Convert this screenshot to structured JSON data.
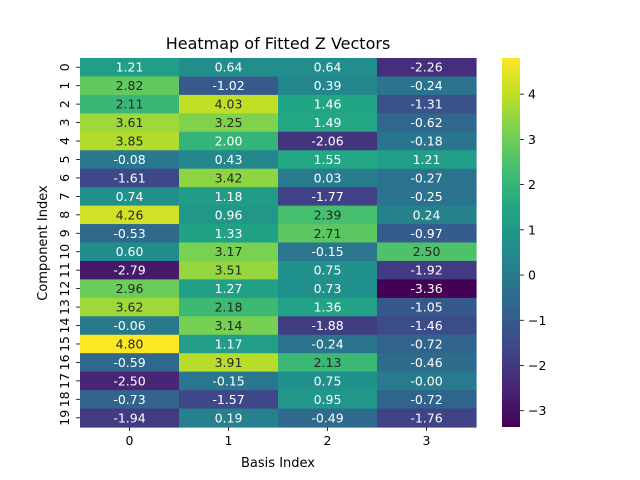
{
  "chart_data": {
    "type": "heatmap",
    "title": "Heatmap of Fitted Z Vectors",
    "xlabel": "Basis Index",
    "ylabel": "Component Index",
    "x_categories": [
      "0",
      "1",
      "2",
      "3"
    ],
    "y_categories": [
      "0",
      "1",
      "2",
      "3",
      "4",
      "5",
      "6",
      "7",
      "8",
      "9",
      "10",
      "11",
      "12",
      "13",
      "14",
      "15",
      "16",
      "17",
      "18",
      "19"
    ],
    "values": [
      [
        1.21,
        0.64,
        0.64,
        -2.26
      ],
      [
        2.82,
        -1.02,
        0.39,
        -0.24
      ],
      [
        2.11,
        4.03,
        1.46,
        -1.31
      ],
      [
        3.61,
        3.25,
        1.49,
        -0.62
      ],
      [
        3.85,
        2.0,
        -2.06,
        -0.18
      ],
      [
        -0.08,
        0.43,
        1.55,
        1.21
      ],
      [
        -1.61,
        3.42,
        0.03,
        -0.27
      ],
      [
        0.74,
        1.18,
        -1.77,
        -0.25
      ],
      [
        4.26,
        0.96,
        2.39,
        0.24
      ],
      [
        -0.53,
        1.33,
        2.71,
        -0.97
      ],
      [
        0.6,
        3.17,
        -0.15,
        2.5
      ],
      [
        -2.79,
        3.51,
        0.75,
        -1.92
      ],
      [
        2.96,
        1.27,
        0.73,
        -3.36
      ],
      [
        3.62,
        2.18,
        1.36,
        -1.05
      ],
      [
        -0.06,
        3.14,
        -1.88,
        -1.46
      ],
      [
        4.8,
        1.17,
        -0.24,
        -0.72
      ],
      [
        -0.59,
        3.91,
        2.13,
        -0.46
      ],
      [
        -2.5,
        -0.15,
        0.75,
        -0.0
      ],
      [
        -0.73,
        -1.57,
        0.95,
        -0.72
      ],
      [
        -1.94,
        0.19,
        -0.49,
        -1.76
      ]
    ],
    "labels": [
      [
        "1.21",
        "0.64",
        "0.64",
        "-2.26"
      ],
      [
        "2.82",
        "-1.02",
        "0.39",
        "-0.24"
      ],
      [
        "2.11",
        "4.03",
        "1.46",
        "-1.31"
      ],
      [
        "3.61",
        "3.25",
        "1.49",
        "-0.62"
      ],
      [
        "3.85",
        "2.00",
        "-2.06",
        "-0.18"
      ],
      [
        "-0.08",
        "0.43",
        "1.55",
        "1.21"
      ],
      [
        "-1.61",
        "3.42",
        "0.03",
        "-0.27"
      ],
      [
        "0.74",
        "1.18",
        "-1.77",
        "-0.25"
      ],
      [
        "4.26",
        "0.96",
        "2.39",
        "0.24"
      ],
      [
        "-0.53",
        "1.33",
        "2.71",
        "-0.97"
      ],
      [
        "0.60",
        "3.17",
        "-0.15",
        "2.50"
      ],
      [
        "-2.79",
        "3.51",
        "0.75",
        "-1.92"
      ],
      [
        "2.96",
        "1.27",
        "0.73",
        "-3.36"
      ],
      [
        "3.62",
        "2.18",
        "1.36",
        "-1.05"
      ],
      [
        "-0.06",
        "3.14",
        "-1.88",
        "-1.46"
      ],
      [
        "4.80",
        "1.17",
        "-0.24",
        "-0.72"
      ],
      [
        "-0.59",
        "3.91",
        "2.13",
        "-0.46"
      ],
      [
        "-2.50",
        "-0.15",
        "0.75",
        "-0.00"
      ],
      [
        "-0.73",
        "-1.57",
        "0.95",
        "-0.72"
      ],
      [
        "-1.94",
        "0.19",
        "-0.49",
        "-1.76"
      ]
    ],
    "colormap": "viridis",
    "vmin": -3.36,
    "vmax": 4.8,
    "colorbar_ticks": [
      -3,
      -2,
      -1,
      0,
      1,
      2,
      3,
      4
    ],
    "colorbar_tick_labels": [
      "−3",
      "−2",
      "−1",
      "0",
      "1",
      "2",
      "3",
      "4"
    ],
    "grid": false,
    "legend": "colorbar-right"
  }
}
